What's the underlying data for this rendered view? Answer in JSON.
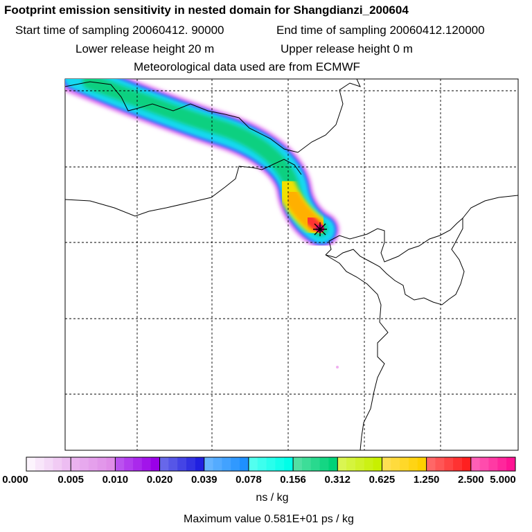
{
  "header": {
    "title": "Footprint emission sensitivity in nested domain for Shangdianzi_200604",
    "start_label": "Start time of sampling 20060412. 90000",
    "end_label": "End time of sampling 20060412.120000",
    "lower_label": "Lower release height   20 m",
    "upper_label": "Upper release height    0 m",
    "met_label": "Meteorological data used are from ECMWF"
  },
  "chart_data": {
    "type": "heatmap",
    "title": "Footprint emission sensitivity in nested domain for Shangdianzi_200604",
    "colorbar": {
      "tick_labels": [
        "0.000",
        "0.005",
        "0.010",
        "0.020",
        "0.039",
        "0.078",
        "0.156",
        "0.312",
        "0.625",
        "1.250",
        "2.500",
        "5.000"
      ],
      "tick_values": [
        0.0,
        0.005,
        0.01,
        0.02,
        0.039,
        0.078,
        0.156,
        0.312,
        0.625,
        1.25,
        2.5,
        5.0
      ],
      "units": "ns / kg",
      "scale": "logarithmic (doubling)"
    },
    "colors": [
      "#fbe0fb",
      "#e08ee8",
      "#9a00e8",
      "#2020e0",
      "#1e90ff",
      "#00ffe8",
      "#00d278",
      "#c8f000",
      "#ffd000",
      "#ff2020",
      "#ff1493",
      "#a000a0"
    ],
    "max_value": "Maximum value  0.581E+01 ps / kg",
    "grid": "dashed lat/lon lines",
    "receptor": "Shangdianzi (marked with X at plume head)"
  }
}
